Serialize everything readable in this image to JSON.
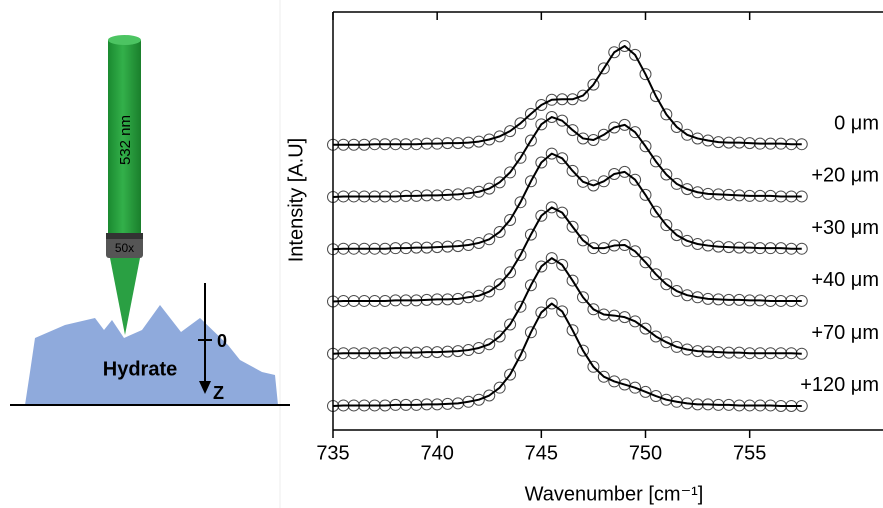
{
  "diagram": {
    "laser_label": "532 nm",
    "objective_label": "50x",
    "sample_label": "Hydrate",
    "origin_label": "0",
    "depth_label": "Z"
  },
  "chart_data": {
    "type": "line",
    "xlabel": "Wavenumber [cm⁻¹]",
    "ylabel": "Intensity [A.U]",
    "xlim": [
      735,
      761.4
    ],
    "xticks": [
      735,
      740,
      745,
      750,
      755
    ],
    "ylim": [
      0,
      8
    ],
    "marker": "circle",
    "x": [
      735,
      735.5,
      736,
      736.5,
      737,
      737.5,
      738,
      738.5,
      739,
      739.5,
      740,
      740.5,
      741,
      741.5,
      742,
      742.5,
      743,
      743.5,
      744,
      744.5,
      745,
      745.5,
      746,
      746.5,
      747,
      747.5,
      748,
      748.5,
      749,
      749.5,
      750,
      750.5,
      751,
      751.5,
      752,
      752.5,
      753,
      753.5,
      754,
      754.5,
      755,
      755.5,
      756,
      756.5,
      757,
      757.5
    ],
    "series": [
      {
        "name": "0 μm",
        "color": "#000000",
        "values": [
          5.46,
          5.46,
          5.46,
          5.46,
          5.47,
          5.47,
          5.47,
          5.47,
          5.47,
          5.48,
          5.48,
          5.49,
          5.49,
          5.5,
          5.52,
          5.56,
          5.62,
          5.72,
          5.87,
          6.05,
          6.22,
          6.32,
          6.33,
          6.33,
          6.4,
          6.61,
          6.92,
          7.23,
          7.35,
          7.18,
          6.81,
          6.39,
          6.04,
          5.8,
          5.65,
          5.58,
          5.54,
          5.51,
          5.5,
          5.5,
          5.49,
          5.48,
          5.48,
          5.48,
          5.47,
          5.47
        ]
      },
      {
        "name": "+20 μm",
        "color": "#000000",
        "values": [
          4.46,
          4.47,
          4.47,
          4.47,
          4.47,
          4.47,
          4.47,
          4.48,
          4.48,
          4.49,
          4.49,
          4.5,
          4.51,
          4.53,
          4.56,
          4.62,
          4.74,
          4.93,
          5.21,
          5.54,
          5.85,
          5.99,
          5.92,
          5.74,
          5.58,
          5.55,
          5.65,
          5.79,
          5.84,
          5.7,
          5.43,
          5.14,
          4.89,
          4.71,
          4.61,
          4.55,
          4.52,
          4.51,
          4.5,
          4.49,
          4.48,
          4.48,
          4.48,
          4.47,
          4.47,
          4.47
        ]
      },
      {
        "name": "+30 μm",
        "color": "#000000",
        "values": [
          3.46,
          3.47,
          3.47,
          3.47,
          3.47,
          3.47,
          3.48,
          3.48,
          3.49,
          3.49,
          3.5,
          3.51,
          3.52,
          3.54,
          3.58,
          3.65,
          3.79,
          4.02,
          4.36,
          4.76,
          5.12,
          5.29,
          5.2,
          4.96,
          4.75,
          4.68,
          4.76,
          4.9,
          4.94,
          4.79,
          4.5,
          4.18,
          3.92,
          3.73,
          3.62,
          3.56,
          3.53,
          3.51,
          3.5,
          3.49,
          3.49,
          3.48,
          3.48,
          3.48,
          3.47,
          3.47
        ]
      },
      {
        "name": "+40 μm",
        "color": "#000000",
        "values": [
          2.46,
          2.47,
          2.47,
          2.47,
          2.47,
          2.47,
          2.48,
          2.48,
          2.48,
          2.49,
          2.5,
          2.5,
          2.51,
          2.54,
          2.57,
          2.65,
          2.79,
          3.02,
          3.35,
          3.74,
          4.1,
          4.26,
          4.16,
          3.89,
          3.63,
          3.48,
          3.48,
          3.53,
          3.54,
          3.42,
          3.21,
          2.98,
          2.79,
          2.66,
          2.58,
          2.54,
          2.51,
          2.5,
          2.49,
          2.49,
          2.48,
          2.48,
          2.47,
          2.47,
          2.47,
          2.47
        ]
      },
      {
        "name": "+70 μm",
        "color": "#000000",
        "values": [
          1.46,
          1.47,
          1.47,
          1.47,
          1.47,
          1.47,
          1.48,
          1.48,
          1.48,
          1.49,
          1.49,
          1.5,
          1.51,
          1.53,
          1.57,
          1.64,
          1.79,
          2.02,
          2.36,
          2.77,
          3.13,
          3.29,
          3.16,
          2.86,
          2.54,
          2.31,
          2.21,
          2.19,
          2.16,
          2.08,
          1.94,
          1.79,
          1.68,
          1.59,
          1.54,
          1.51,
          1.5,
          1.49,
          1.48,
          1.48,
          1.47,
          1.47,
          1.47,
          1.47,
          1.47,
          1.46
        ]
      },
      {
        "name": "+120 μm",
        "color": "#000000",
        "values": [
          0.46,
          0.47,
          0.47,
          0.47,
          0.47,
          0.47,
          0.48,
          0.48,
          0.48,
          0.49,
          0.49,
          0.5,
          0.51,
          0.54,
          0.58,
          0.66,
          0.81,
          1.06,
          1.43,
          1.87,
          2.25,
          2.42,
          2.27,
          1.91,
          1.52,
          1.21,
          1.02,
          0.93,
          0.87,
          0.81,
          0.73,
          0.65,
          0.58,
          0.54,
          0.51,
          0.49,
          0.49,
          0.48,
          0.48,
          0.47,
          0.47,
          0.47,
          0.47,
          0.46,
          0.46,
          0.46
        ]
      }
    ]
  }
}
